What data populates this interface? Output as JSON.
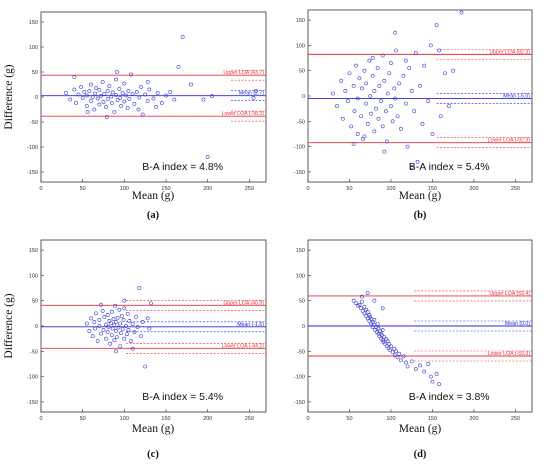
{
  "colors": {
    "loa": "#e8323c",
    "mean": "#2a2ad6",
    "points": "#3a3ad0",
    "frame": "#333333"
  },
  "chart_data": [
    {
      "type": "scatter",
      "panel": "(a)",
      "xlabel": "Mean (g)",
      "ylabel": "Difference (g)",
      "xlim": [
        0,
        270
      ],
      "ylim": [
        -170,
        170
      ],
      "xticks": [
        0,
        50,
        100,
        150,
        200,
        250
      ],
      "yticks": [
        -150,
        -100,
        -50,
        0,
        50,
        100,
        150
      ],
      "mean_value": 2.7,
      "upper_loa": 43.7,
      "lower_loa": -38.3,
      "mean_label": "Mean (2.7)",
      "upper_label": "Upper LOA (43.7)",
      "lower_label": "Lower LOA (-38.3)",
      "ba_index": "B-A index = 4.8%",
      "points": [
        [
          30,
          8
        ],
        [
          35,
          -5
        ],
        [
          40,
          15
        ],
        [
          42,
          -12
        ],
        [
          45,
          5
        ],
        [
          48,
          20
        ],
        [
          50,
          -2
        ],
        [
          52,
          10
        ],
        [
          55,
          -18
        ],
        [
          55,
          3
        ],
        [
          58,
          12
        ],
        [
          60,
          -8
        ],
        [
          60,
          25
        ],
        [
          62,
          0
        ],
        [
          64,
          -25
        ],
        [
          65,
          7
        ],
        [
          66,
          18
        ],
        [
          68,
          -3
        ],
        [
          70,
          14
        ],
        [
          70,
          -15
        ],
        [
          72,
          2
        ],
        [
          74,
          30
        ],
        [
          75,
          -10
        ],
        [
          76,
          6
        ],
        [
          78,
          -20
        ],
        [
          80,
          12
        ],
        [
          80,
          -4
        ],
        [
          82,
          22
        ],
        [
          84,
          1
        ],
        [
          85,
          -12
        ],
        [
          86,
          9
        ],
        [
          88,
          -30
        ],
        [
          90,
          4
        ],
        [
          90,
          35
        ],
        [
          92,
          -6
        ],
        [
          94,
          16
        ],
        [
          95,
          -2
        ],
        [
          96,
          -18
        ],
        [
          98,
          8
        ],
        [
          100,
          27
        ],
        [
          100,
          -9
        ],
        [
          102,
          3
        ],
        [
          104,
          -22
        ],
        [
          105,
          12
        ],
        [
          106,
          -4
        ],
        [
          108,
          45
        ],
        [
          110,
          6
        ],
        [
          112,
          -14
        ],
        [
          115,
          10
        ],
        [
          118,
          -1
        ],
        [
          120,
          20
        ],
        [
          122,
          -35
        ],
        [
          125,
          5
        ],
        [
          128,
          -8
        ],
        [
          130,
          15
        ],
        [
          135,
          -3
        ],
        [
          140,
          8
        ],
        [
          145,
          -12
        ],
        [
          150,
          3
        ],
        [
          155,
          10
        ],
        [
          160,
          -5
        ],
        [
          165,
          60
        ],
        [
          170,
          120
        ],
        [
          180,
          25
        ],
        [
          195,
          -5
        ],
        [
          200,
          -120
        ],
        [
          205,
          2
        ],
        [
          258,
          12
        ],
        [
          255,
          -2
        ],
        [
          40,
          40
        ],
        [
          56,
          -30
        ],
        [
          79,
          -40
        ],
        [
          91,
          50
        ],
        [
          117,
          -25
        ],
        [
          128,
          30
        ],
        [
          138,
          -20
        ]
      ]
    },
    {
      "type": "scatter",
      "panel": "(b)",
      "xlabel": "Mean (g)",
      "ylabel": "",
      "xlim": [
        0,
        270
      ],
      "ylim": [
        -170,
        170
      ],
      "xticks": [
        0,
        50,
        100,
        150,
        200,
        250
      ],
      "yticks": [
        -150,
        -100,
        -50,
        0,
        50,
        100,
        150
      ],
      "mean_value": -5.0,
      "upper_loa": 82.3,
      "lower_loa": -92.3,
      "mean_label": "Mean (-5.0)",
      "upper_label": "Upper LOA (82.3)",
      "lower_label": "Lower LOA (-92.3)",
      "ba_index": "B-A index = 5.4%",
      "points": [
        [
          30,
          5
        ],
        [
          35,
          -20
        ],
        [
          40,
          30
        ],
        [
          42,
          -45
        ],
        [
          45,
          10
        ],
        [
          48,
          -10
        ],
        [
          50,
          45
        ],
        [
          52,
          -60
        ],
        [
          55,
          20
        ],
        [
          56,
          -30
        ],
        [
          58,
          60
        ],
        [
          60,
          -5
        ],
        [
          60,
          -75
        ],
        [
          62,
          35
        ],
        [
          64,
          -40
        ],
        [
          65,
          15
        ],
        [
          66,
          -85
        ],
        [
          68,
          50
        ],
        [
          70,
          -15
        ],
        [
          70,
          25
        ],
        [
          72,
          -55
        ],
        [
          74,
          70
        ],
        [
          75,
          0
        ],
        [
          76,
          -35
        ],
        [
          78,
          40
        ],
        [
          80,
          -70
        ],
        [
          80,
          10
        ],
        [
          82,
          -25
        ],
        [
          84,
          55
        ],
        [
          85,
          -45
        ],
        [
          86,
          20
        ],
        [
          88,
          -10
        ],
        [
          90,
          80
        ],
        [
          90,
          -60
        ],
        [
          92,
          30
        ],
        [
          94,
          -30
        ],
        [
          95,
          -90
        ],
        [
          96,
          5
        ],
        [
          98,
          45
        ],
        [
          100,
          -20
        ],
        [
          100,
          65
        ],
        [
          102,
          -50
        ],
        [
          104,
          15
        ],
        [
          105,
          -5
        ],
        [
          106,
          90
        ],
        [
          108,
          -40
        ],
        [
          110,
          25
        ],
        [
          112,
          -65
        ],
        [
          115,
          40
        ],
        [
          118,
          -15
        ],
        [
          120,
          -100
        ],
        [
          122,
          55
        ],
        [
          125,
          10
        ],
        [
          128,
          -30
        ],
        [
          130,
          85
        ],
        [
          132,
          -130
        ],
        [
          135,
          20
        ],
        [
          138,
          -55
        ],
        [
          140,
          60
        ],
        [
          145,
          -10
        ],
        [
          148,
          100
        ],
        [
          150,
          -75
        ],
        [
          155,
          140
        ],
        [
          158,
          90
        ],
        [
          160,
          -40
        ],
        [
          165,
          45
        ],
        [
          170,
          -20
        ],
        [
          175,
          50
        ],
        [
          185,
          165
        ],
        [
          55,
          -95
        ],
        [
          68,
          -80
        ],
        [
          78,
          75
        ],
        [
          92,
          -110
        ],
        [
          105,
          125
        ],
        [
          118,
          70
        ],
        [
          125,
          -140
        ]
      ]
    },
    {
      "type": "scatter",
      "panel": "(c)",
      "xlabel": "Mean (g)",
      "ylabel": "Difference (g)",
      "xlim": [
        0,
        270
      ],
      "ylim": [
        -170,
        170
      ],
      "xticks": [
        0,
        50,
        100,
        150,
        200,
        250
      ],
      "yticks": [
        -150,
        -100,
        -50,
        0,
        50,
        100,
        150
      ],
      "mean_value": -1.6,
      "upper_loa": 40.9,
      "lower_loa": -44.2,
      "mean_label": "Mean (-1.6)",
      "upper_label": "Upper LOA (40.9)",
      "lower_label": "Lower LOA (-44.2)",
      "ba_index": "B-A index = 5.4%",
      "points": [
        [
          55,
          5
        ],
        [
          58,
          -10
        ],
        [
          60,
          15
        ],
        [
          62,
          -20
        ],
        [
          64,
          8
        ],
        [
          65,
          -5
        ],
        [
          66,
          25
        ],
        [
          68,
          -30
        ],
        [
          70,
          0
        ],
        [
          70,
          12
        ],
        [
          72,
          -15
        ],
        [
          74,
          30
        ],
        [
          75,
          -8
        ],
        [
          76,
          18
        ],
        [
          78,
          -25
        ],
        [
          78,
          3
        ],
        [
          80,
          -12
        ],
        [
          80,
          22
        ],
        [
          81,
          -2
        ],
        [
          82,
          10
        ],
        [
          83,
          -35
        ],
        [
          84,
          6
        ],
        [
          85,
          -18
        ],
        [
          85,
          28
        ],
        [
          86,
          -5
        ],
        [
          87,
          14
        ],
        [
          88,
          -28
        ],
        [
          88,
          2
        ],
        [
          89,
          40
        ],
        [
          90,
          -10
        ],
        [
          90,
          8
        ],
        [
          91,
          -22
        ],
        [
          92,
          16
        ],
        [
          93,
          -3
        ],
        [
          94,
          32
        ],
        [
          95,
          -40
        ],
        [
          95,
          5
        ],
        [
          96,
          -14
        ],
        [
          97,
          20
        ],
        [
          98,
          -6
        ],
        [
          99,
          12
        ],
        [
          100,
          -25
        ],
        [
          100,
          35
        ],
        [
          102,
          0
        ],
        [
          103,
          -16
        ],
        [
          104,
          24
        ],
        [
          105,
          -8
        ],
        [
          106,
          10
        ],
        [
          108,
          -30
        ],
        [
          110,
          4
        ],
        [
          112,
          -12
        ],
        [
          114,
          18
        ],
        [
          116,
          -2
        ],
        [
          118,
          75
        ],
        [
          120,
          -20
        ],
        [
          122,
          8
        ],
        [
          125,
          -80
        ],
        [
          128,
          15
        ],
        [
          130,
          -5
        ],
        [
          132,
          45
        ],
        [
          90,
          -50
        ],
        [
          72,
          42
        ],
        [
          100,
          50
        ],
        [
          110,
          -45
        ]
      ]
    },
    {
      "type": "scatter",
      "panel": "(d)",
      "xlabel": "Mean (g)",
      "ylabel": "",
      "xlim": [
        0,
        270
      ],
      "ylim": [
        -170,
        170
      ],
      "xticks": [
        0,
        50,
        100,
        150,
        200,
        250
      ],
      "yticks": [
        -150,
        -100,
        -50,
        0,
        50,
        100,
        150
      ],
      "mean_value": 0.0,
      "upper_loa": 59.4,
      "lower_loa": -59.3,
      "mean_label": "Mean (0.0)",
      "upper_label": "Upper LOA (59.4)",
      "lower_label": "Lower LOA (-59.3)",
      "ba_index": "B-A index = 3.8%",
      "points": [
        [
          55,
          50
        ],
        [
          58,
          45
        ],
        [
          60,
          40
        ],
        [
          62,
          42
        ],
        [
          64,
          35
        ],
        [
          65,
          48
        ],
        [
          66,
          30
        ],
        [
          68,
          38
        ],
        [
          68,
          25
        ],
        [
          70,
          32
        ],
        [
          70,
          20
        ],
        [
          72,
          28
        ],
        [
          72,
          15
        ],
        [
          74,
          22
        ],
        [
          74,
          10
        ],
        [
          75,
          18
        ],
        [
          76,
          5
        ],
        [
          76,
          14
        ],
        [
          78,
          8
        ],
        [
          78,
          -2
        ],
        [
          80,
          2
        ],
        [
          80,
          12
        ],
        [
          81,
          -8
        ],
        [
          82,
          -2
        ],
        [
          83,
          -12
        ],
        [
          84,
          4
        ],
        [
          85,
          -15
        ],
        [
          85,
          -5
        ],
        [
          86,
          -20
        ],
        [
          87,
          -10
        ],
        [
          88,
          -25
        ],
        [
          88,
          -15
        ],
        [
          89,
          -18
        ],
        [
          90,
          -28
        ],
        [
          90,
          -8
        ],
        [
          91,
          -32
        ],
        [
          92,
          -22
        ],
        [
          93,
          -35
        ],
        [
          94,
          -26
        ],
        [
          95,
          -40
        ],
        [
          96,
          -30
        ],
        [
          97,
          -44
        ],
        [
          98,
          -36
        ],
        [
          99,
          -48
        ],
        [
          100,
          -40
        ],
        [
          102,
          -52
        ],
        [
          104,
          -45
        ],
        [
          105,
          -58
        ],
        [
          106,
          -50
        ],
        [
          108,
          -62
        ],
        [
          110,
          -55
        ],
        [
          112,
          -68
        ],
        [
          115,
          -60
        ],
        [
          118,
          -72
        ],
        [
          120,
          -80
        ],
        [
          125,
          -70
        ],
        [
          130,
          -85
        ],
        [
          135,
          -78
        ],
        [
          140,
          -90
        ],
        [
          145,
          -75
        ],
        [
          148,
          -100
        ],
        [
          150,
          -110
        ],
        [
          155,
          -95
        ],
        [
          158,
          -115
        ],
        [
          72,
          65
        ],
        [
          80,
          50
        ],
        [
          65,
          58
        ],
        [
          90,
          35
        ]
      ]
    }
  ]
}
